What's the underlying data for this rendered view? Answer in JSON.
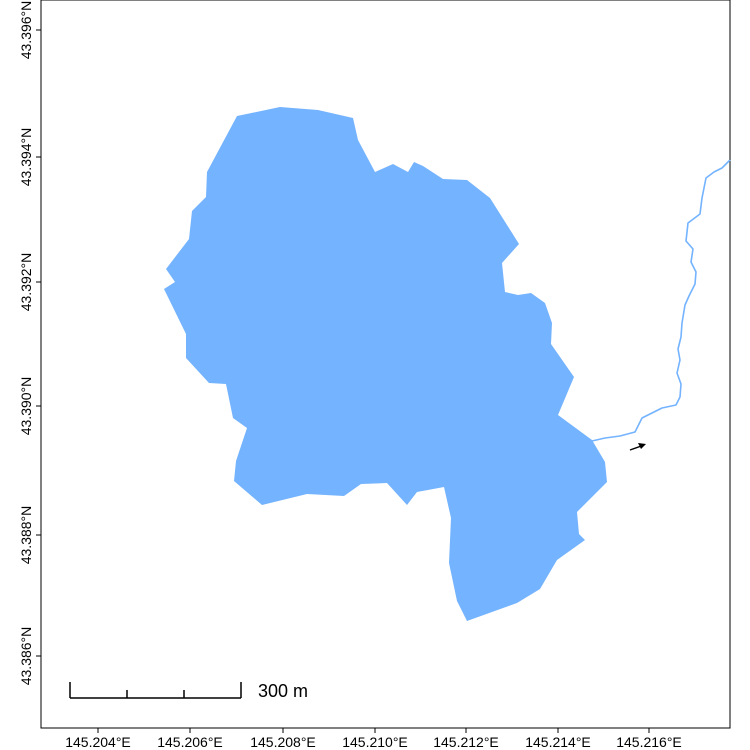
{
  "map": {
    "x_ticks": [
      "145.204°E",
      "145.206°E",
      "145.208°E",
      "145.210°E",
      "145.212°E",
      "145.214°E",
      "145.216°E"
    ],
    "y_ticks": [
      "43.386°N",
      "43.388°N",
      "43.390°N",
      "43.392°N",
      "43.394°N",
      "43.396°N"
    ],
    "scale_bar_label": "300 m",
    "colors": {
      "lake_fill": "#74b3ff",
      "river_stroke": "#74b3ff",
      "frame": "#000000",
      "arrow": "#000000"
    }
  }
}
